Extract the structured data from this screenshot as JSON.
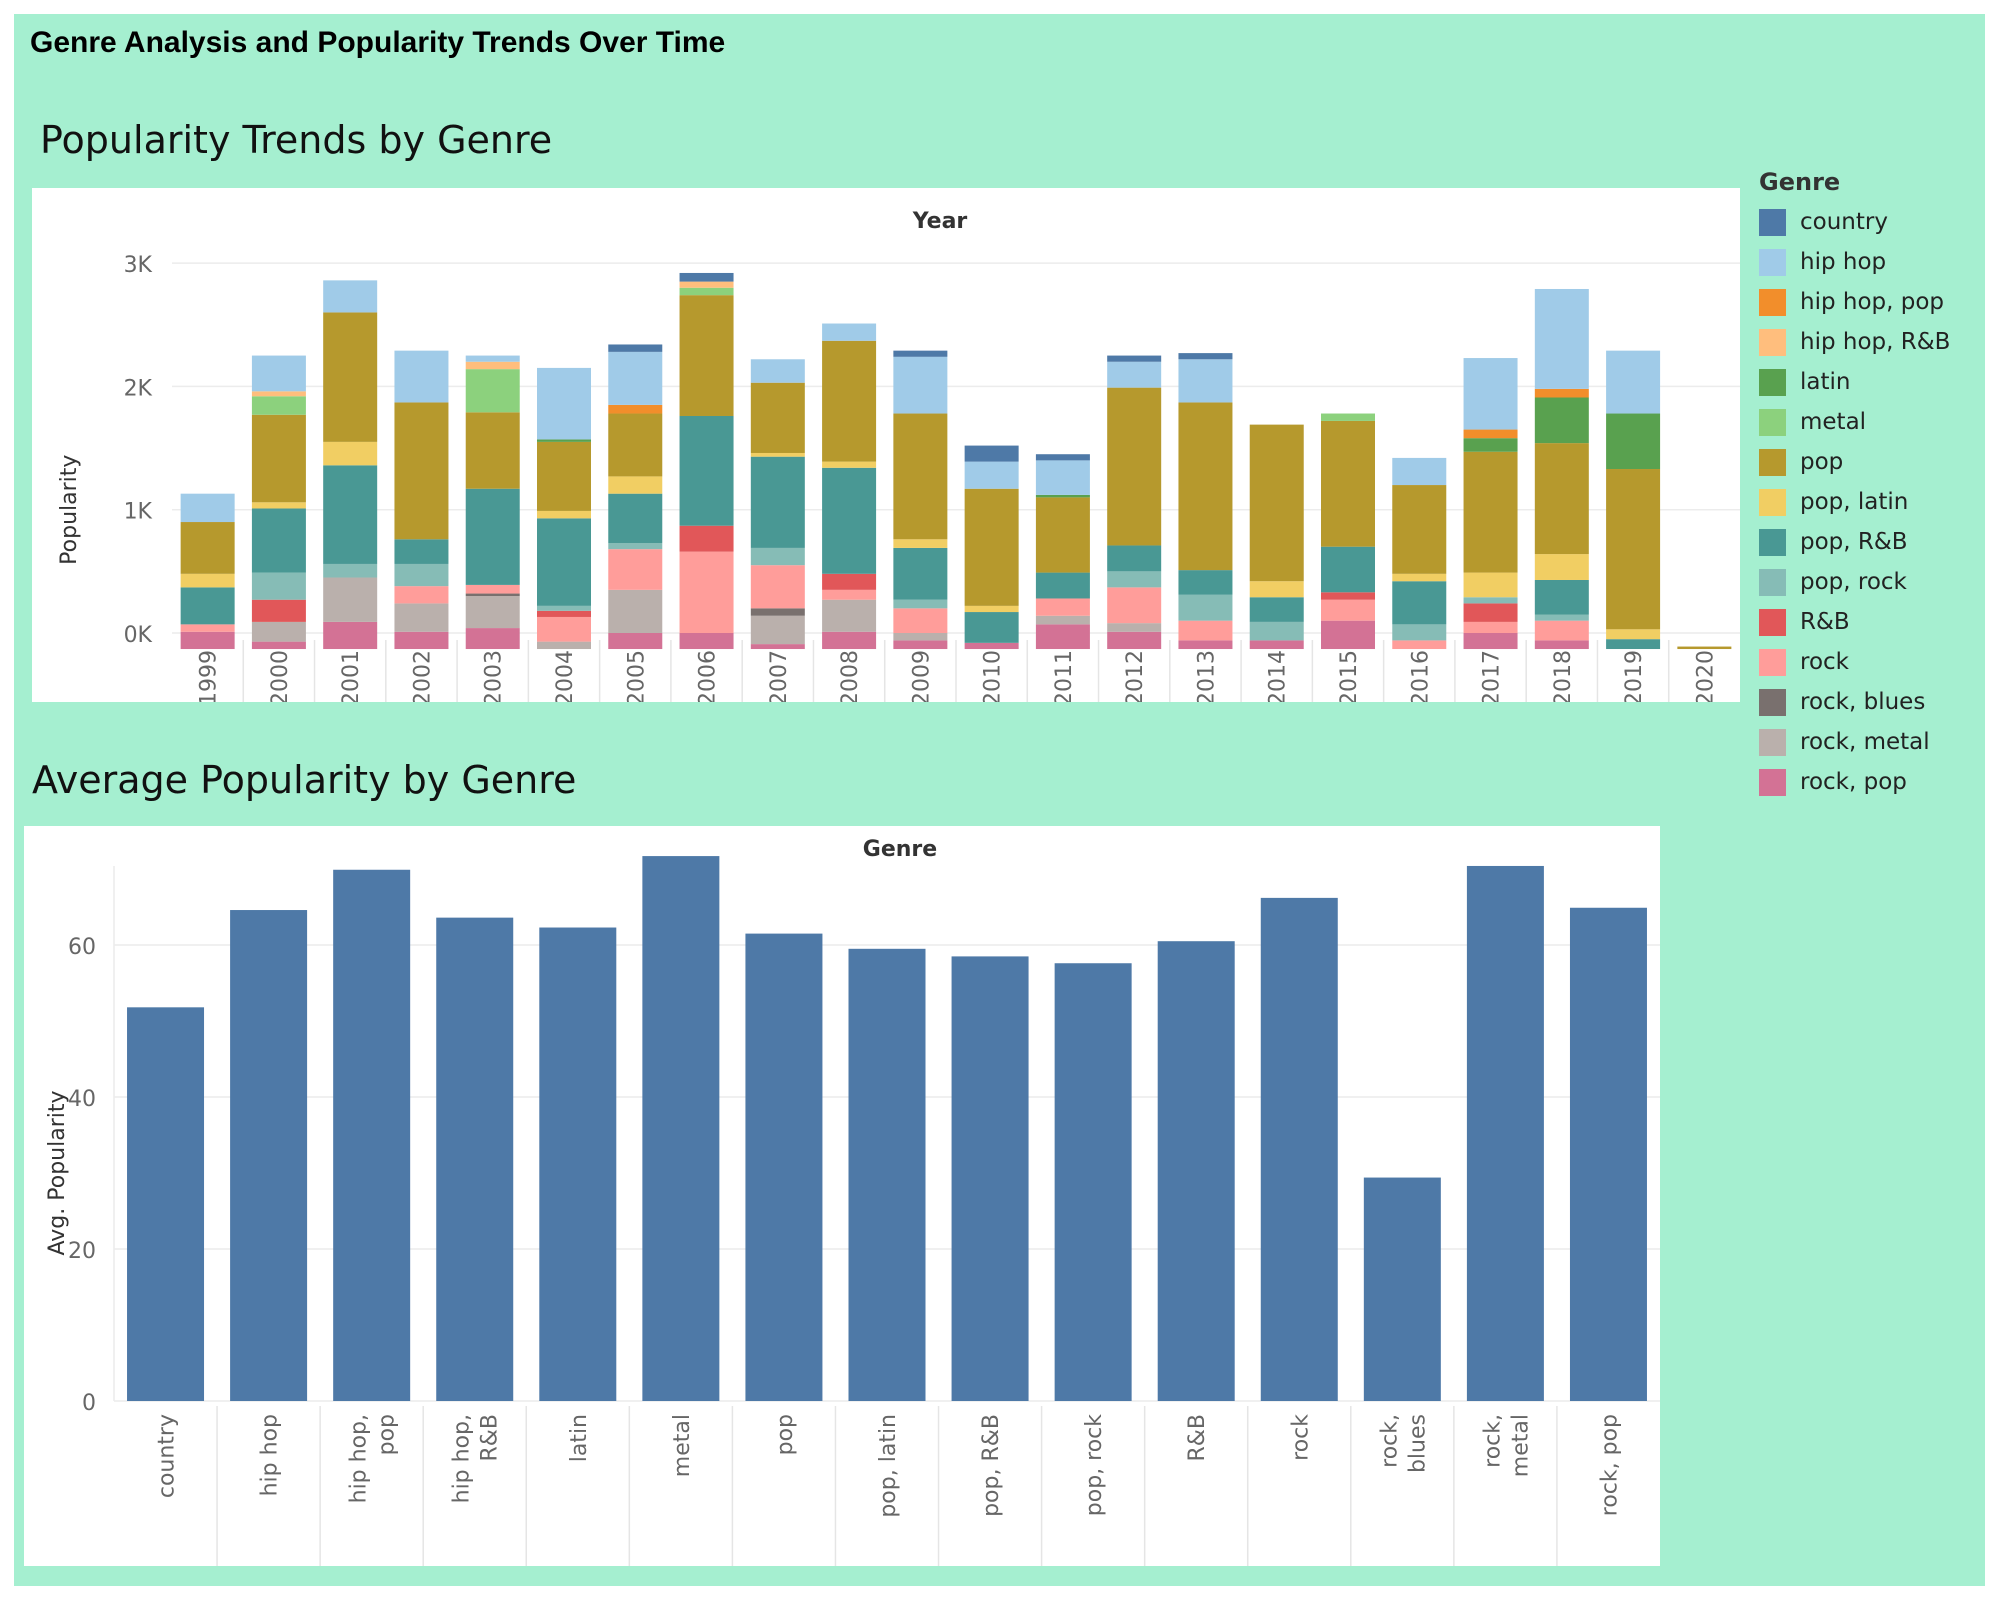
{
  "title": "Genre Analysis and Popularity Trends Over Time",
  "legend": {
    "title": "Genre",
    "items": [
      {
        "label": "country",
        "color": "#4e79a7"
      },
      {
        "label": "hip hop",
        "color": "#a0cbe8"
      },
      {
        "label": "hip hop, pop",
        "color": "#f28e2b"
      },
      {
        "label": "hip hop, R&B",
        "color": "#ffbe7d"
      },
      {
        "label": "latin",
        "color": "#59a14f"
      },
      {
        "label": "metal",
        "color": "#8cd17d"
      },
      {
        "label": "pop",
        "color": "#b6992d"
      },
      {
        "label": "pop, latin",
        "color": "#f1ce63"
      },
      {
        "label": "pop, R&B",
        "color": "#499894"
      },
      {
        "label": "pop, rock",
        "color": "#86bcb6"
      },
      {
        "label": "R&B",
        "color": "#e15759"
      },
      {
        "label": "rock",
        "color": "#ff9d9a"
      },
      {
        "label": "rock, blues",
        "color": "#79706e"
      },
      {
        "label": "rock, metal",
        "color": "#bab0ac"
      },
      {
        "label": "rock, pop",
        "color": "#d37295"
      }
    ]
  },
  "chart_data": [
    {
      "type": "bar",
      "stacked": true,
      "title": "Popularity Trends by Genre",
      "xlabel": "Year",
      "ylabel": "Popularity",
      "ylim": [
        -130,
        3000
      ],
      "yticks": [
        {
          "value": 0,
          "label": "0K"
        },
        {
          "value": 1000,
          "label": "1K"
        },
        {
          "value": 2000,
          "label": "2K"
        },
        {
          "value": 3000,
          "label": "3K"
        }
      ],
      "categories": [
        "1999",
        "2000",
        "2001",
        "2002",
        "2003",
        "2004",
        "2005",
        "2006",
        "2007",
        "2008",
        "2009",
        "2010",
        "2011",
        "2012",
        "2013",
        "2014",
        "2015",
        "2016",
        "2017",
        "2018",
        "2019",
        "2020"
      ],
      "series": [
        {
          "name": "rock, pop",
          "values": [
            140,
            60,
            220,
            140,
            170,
            0,
            130,
            130,
            40,
            140,
            70,
            50,
            200,
            140,
            70,
            70,
            230,
            0,
            130,
            70,
            0,
            0
          ]
        },
        {
          "name": "rock, metal",
          "values": [
            0,
            160,
            360,
            230,
            260,
            60,
            350,
            0,
            230,
            260,
            60,
            0,
            70,
            70,
            0,
            0,
            0,
            0,
            0,
            0,
            0,
            0
          ]
        },
        {
          "name": "rock, blues",
          "values": [
            0,
            0,
            0,
            0,
            20,
            0,
            0,
            0,
            60,
            0,
            0,
            0,
            0,
            0,
            0,
            0,
            0,
            0,
            0,
            0,
            0,
            0
          ]
        },
        {
          "name": "rock",
          "values": [
            60,
            0,
            0,
            140,
            70,
            200,
            330,
            660,
            350,
            80,
            200,
            0,
            140,
            290,
            160,
            0,
            170,
            70,
            90,
            160,
            0,
            0
          ]
        },
        {
          "name": "R&B",
          "values": [
            0,
            180,
            0,
            0,
            0,
            50,
            0,
            210,
            0,
            130,
            0,
            0,
            0,
            0,
            0,
            0,
            60,
            0,
            150,
            0,
            0,
            0
          ]
        },
        {
          "name": "pop, rock",
          "values": [
            0,
            220,
            110,
            180,
            0,
            40,
            50,
            0,
            140,
            0,
            70,
            0,
            0,
            130,
            210,
            150,
            0,
            130,
            50,
            50,
            0,
            0
          ]
        },
        {
          "name": "pop, R&B",
          "values": [
            300,
            520,
            800,
            200,
            780,
            710,
            400,
            890,
            740,
            860,
            420,
            250,
            210,
            210,
            200,
            200,
            370,
            350,
            0,
            280,
            80,
            0
          ]
        },
        {
          "name": "pop, latin",
          "values": [
            110,
            50,
            190,
            0,
            0,
            60,
            140,
            0,
            30,
            50,
            70,
            50,
            0,
            0,
            0,
            130,
            0,
            60,
            200,
            210,
            80,
            0
          ]
        },
        {
          "name": "pop",
          "values": [
            420,
            710,
            1050,
            1110,
            620,
            560,
            510,
            980,
            570,
            980,
            1020,
            950,
            610,
            1280,
            1360,
            1270,
            1020,
            720,
            980,
            900,
            1300,
            20
          ]
        },
        {
          "name": "metal",
          "values": [
            0,
            150,
            0,
            0,
            350,
            0,
            0,
            60,
            0,
            0,
            0,
            0,
            0,
            0,
            0,
            0,
            60,
            0,
            0,
            0,
            0,
            0
          ]
        },
        {
          "name": "latin",
          "values": [
            0,
            0,
            0,
            0,
            0,
            20,
            0,
            0,
            0,
            0,
            0,
            0,
            20,
            0,
            0,
            0,
            0,
            0,
            110,
            370,
            450,
            0
          ]
        },
        {
          "name": "hip hop, R&B",
          "values": [
            0,
            40,
            0,
            0,
            60,
            0,
            0,
            50,
            0,
            0,
            0,
            0,
            0,
            0,
            0,
            0,
            0,
            0,
            0,
            0,
            0,
            0
          ]
        },
        {
          "name": "hip hop, pop",
          "values": [
            0,
            0,
            0,
            0,
            0,
            0,
            70,
            0,
            0,
            0,
            0,
            0,
            0,
            0,
            0,
            0,
            0,
            0,
            70,
            70,
            0,
            0
          ]
        },
        {
          "name": "hip hop",
          "values": [
            230,
            290,
            260,
            420,
            50,
            580,
            430,
            0,
            190,
            140,
            460,
            220,
            280,
            210,
            350,
            0,
            0,
            220,
            580,
            810,
            510,
            0
          ]
        },
        {
          "name": "country",
          "values": [
            0,
            0,
            0,
            0,
            0,
            0,
            60,
            70,
            0,
            0,
            50,
            130,
            50,
            50,
            50,
            0,
            0,
            0,
            0,
            0,
            0,
            0
          ]
        }
      ]
    },
    {
      "type": "bar",
      "title": "Average Popularity by Genre",
      "xlabel": "Genre",
      "ylabel": "Avg. Popularity",
      "ylim": [
        0,
        77
      ],
      "yticks": [
        0,
        20,
        40,
        60
      ],
      "categories": [
        "country",
        "hip hop",
        "hip hop, pop",
        "hip hop, R&B",
        "latin",
        "metal",
        "pop",
        "pop, latin",
        "pop, R&B",
        "pop, rock",
        "R&B",
        "rock",
        "rock, blues",
        "rock, metal",
        "rock, pop"
      ],
      "tick_labels": [
        [
          "country"
        ],
        [
          "hip hop"
        ],
        [
          "hip hop,",
          "pop"
        ],
        [
          "hip hop,",
          "R&B"
        ],
        [
          "latin"
        ],
        [
          "metal"
        ],
        [
          "pop"
        ],
        [
          "pop, latin"
        ],
        [
          "pop, R&B"
        ],
        [
          "pop, rock"
        ],
        [
          "R&B"
        ],
        [
          "rock"
        ],
        [
          "rock,",
          "blues"
        ],
        [
          "rock,",
          "metal"
        ],
        [
          "rock, pop"
        ]
      ],
      "values": [
        51.8,
        64.6,
        69.9,
        63.6,
        62.3,
        71.7,
        61.5,
        59.5,
        58.5,
        57.6,
        60.5,
        66.2,
        29.4,
        70.4,
        64.9
      ],
      "color": "#4e79a7"
    }
  ]
}
